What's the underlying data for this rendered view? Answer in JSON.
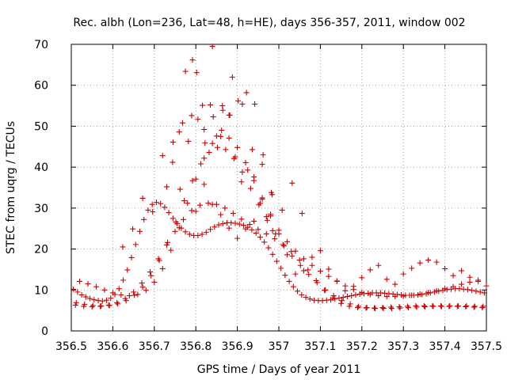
{
  "chart_data": {
    "type": "scatter",
    "title": "Rec. albh (Lon=236, Lat=48, h=HE), days 356-357, 2011, window 002",
    "xlabel": "GPS time / Days of year 2011",
    "ylabel": "STEC from uqrg / TECUs",
    "xlim": [
      356.5,
      357.5
    ],
    "ylim": [
      0,
      70
    ],
    "xticks": [
      "356.5",
      "356.6",
      "356.7",
      "356.8",
      "356.9",
      "357",
      "357.1",
      "357.2",
      "357.3",
      "357.4",
      "357.5"
    ],
    "yticks": [
      "0",
      "10",
      "20",
      "30",
      "40",
      "50",
      "60",
      "70"
    ],
    "grid": true,
    "marker": "plus",
    "color": "#cc0000",
    "x": [
      356.505,
      356.515,
      356.525,
      356.535,
      356.545,
      356.555,
      356.565,
      356.575,
      356.585,
      356.595,
      356.605,
      356.615,
      356.625,
      356.635,
      356.645,
      356.655,
      356.665,
      356.675,
      356.685,
      356.695,
      356.705,
      356.715,
      356.725,
      356.735,
      356.745,
      356.755,
      356.765,
      356.775,
      356.785,
      356.795,
      356.805,
      356.815,
      356.825,
      356.835,
      356.845,
      356.855,
      356.865,
      356.875,
      356.885,
      356.895,
      356.905,
      356.915,
      356.925,
      356.935,
      356.945,
      356.955,
      356.965,
      356.975,
      356.985,
      356.995,
      357.005,
      357.015,
      357.025,
      357.035,
      357.045,
      357.055,
      357.065,
      357.075,
      357.085,
      357.095,
      357.105,
      357.115,
      357.125,
      357.135,
      357.145,
      357.155,
      357.165,
      357.175,
      357.185,
      357.195,
      357.205,
      357.215,
      357.225,
      357.235,
      357.245,
      357.255,
      357.265,
      357.275,
      357.285,
      357.295,
      357.305,
      357.315,
      357.325,
      357.335,
      357.345,
      357.355,
      357.365,
      357.375,
      357.385,
      357.395,
      357.405,
      357.415,
      357.425,
      357.435,
      357.445,
      357.455,
      357.465,
      357.475,
      357.485,
      357.495,
      356.51,
      356.53,
      356.55,
      356.57,
      356.59,
      356.61,
      356.63,
      356.65,
      356.67,
      356.69,
      356.71,
      356.73,
      356.75,
      356.77,
      356.79,
      356.81,
      356.83,
      356.85,
      356.87,
      356.89,
      356.91,
      356.93,
      356.95,
      356.97,
      356.99,
      357.01,
      357.03,
      357.05,
      357.07,
      357.09,
      357.11,
      357.13,
      357.15,
      357.17,
      357.19,
      357.21,
      357.23,
      357.25,
      357.27,
      357.29,
      357.31,
      357.33,
      357.35,
      357.37,
      357.39,
      357.41,
      357.43,
      357.45,
      357.47,
      357.49,
      356.52,
      356.54,
      356.56,
      356.58,
      356.6,
      356.62,
      356.64,
      356.66,
      356.68,
      356.7,
      356.72,
      356.74,
      356.76,
      356.78,
      356.8,
      356.82,
      356.84,
      356.86,
      356.88,
      356.9,
      356.92,
      356.94,
      356.96,
      356.98,
      357.0,
      357.02,
      357.04,
      357.06,
      357.08,
      357.1,
      357.12,
      357.14,
      357.16,
      357.18,
      357.2,
      357.22,
      357.24,
      357.26,
      357.28,
      357.3,
      357.32,
      357.34,
      357.36,
      357.38,
      357.4,
      357.42,
      357.44,
      357.46,
      357.48,
      356.512,
      356.532,
      356.552,
      356.572,
      356.592,
      356.612,
      356.632,
      356.652,
      356.672,
      356.692,
      356.712,
      356.732,
      356.752,
      356.772,
      356.792,
      356.812,
      356.832,
      356.852,
      356.872,
      356.892,
      356.912,
      356.932,
      356.952,
      356.972,
      356.992,
      357.012,
      357.032,
      357.052,
      357.072,
      357.092,
      357.112,
      357.132,
      357.152,
      357.172,
      357.192,
      357.212,
      357.232,
      357.252,
      357.272,
      357.292,
      357.312,
      357.332,
      357.352,
      357.372,
      357.392,
      357.412,
      357.432,
      357.452,
      357.472,
      357.492,
      356.624,
      356.648,
      356.672,
      356.696,
      356.72,
      356.744,
      356.768,
      356.792,
      356.816,
      356.84,
      356.864,
      356.888,
      356.912,
      356.936,
      356.96,
      356.984,
      357.008,
      357.032,
      357.056,
      356.73,
      356.745,
      356.76,
      356.775,
      356.79,
      356.805,
      356.82,
      356.835,
      356.85,
      356.865,
      356.88,
      356.895,
      356.91,
      356.925,
      356.94,
      356.955,
      356.97,
      356.985,
      356.762,
      356.782,
      356.802,
      356.822,
      356.842,
      356.862,
      356.882,
      356.902,
      356.922,
      356.942,
      356.962,
      356.982,
      356.8,
      356.82,
      356.84,
      356.86,
      356.88,
      356.9,
      356.92,
      356.94,
      356.96,
      356.98,
      357.0,
      357.02,
      357.04,
      357.06,
      357.08,
      357.1,
      357.12,
      357.14,
      357.16,
      357.18,
      357.2,
      357.22,
      357.24,
      357.26,
      357.28,
      357.3,
      357.32,
      357.34,
      357.36,
      357.38,
      357.4,
      357.42,
      357.44,
      357.46,
      357.48,
      357.5
    ],
    "y": [
      10.2,
      9.5,
      8.8,
      8.3,
      7.9,
      7.6,
      7.4,
      7.3,
      7.5,
      8.0,
      8.9,
      10.3,
      12.4,
      14.9,
      17.9,
      21.1,
      24.3,
      27.2,
      29.5,
      30.9,
      31.4,
      31.1,
      30.2,
      28.9,
      27.5,
      26.2,
      25.1,
      24.2,
      23.6,
      23.3,
      23.3,
      23.6,
      24.1,
      24.8,
      25.4,
      25.9,
      26.2,
      26.4,
      26.4,
      26.3,
      26.1,
      25.8,
      25.3,
      24.7,
      23.9,
      22.9,
      21.7,
      20.3,
      18.7,
      17.0,
      15.3,
      13.6,
      12.1,
      10.8,
      9.7,
      8.8,
      8.2,
      7.8,
      7.5,
      7.4,
      7.4,
      7.5,
      7.6,
      7.8,
      8.0,
      8.2,
      8.4,
      8.6,
      8.8,
      9.0,
      9.1,
      9.2,
      9.3,
      9.3,
      9.3,
      9.2,
      9.1,
      9.0,
      8.9,
      8.8,
      8.7,
      8.7,
      8.7,
      8.8,
      8.9,
      9.1,
      9.3,
      9.5,
      9.7,
      9.9,
      10.1,
      10.2,
      10.3,
      10.3,
      10.2,
      10.1,
      9.9,
      9.7,
      9.5,
      9.3,
      6.3,
      6.0,
      5.9,
      6.0,
      6.3,
      6.9,
      7.9,
      9.5,
      11.7,
      14.4,
      17.6,
      21.0,
      24.3,
      27.2,
      29.4,
      30.7,
      31.2,
      30.9,
      30.0,
      28.7,
      27.3,
      26.0,
      24.8,
      23.7,
      22.5,
      21.1,
      19.4,
      17.3,
      14.9,
      12.3,
      9.9,
      8.0,
      6.7,
      6.0,
      5.7,
      5.6,
      5.6,
      5.7,
      5.8,
      5.9,
      6.0,
      6.1,
      6.1,
      6.1,
      6.1,
      6.0,
      6.0,
      5.9,
      5.8,
      5.7,
      12.1,
      11.5,
      10.8,
      10.0,
      9.3,
      8.8,
      8.6,
      8.9,
      9.9,
      11.9,
      15.2,
      19.7,
      25.2,
      31.2,
      37.1,
      42.2,
      45.8,
      47.5,
      47.1,
      44.8,
      41.1,
      36.7,
      32.2,
      28.1,
      24.6,
      21.8,
      19.5,
      17.6,
      16.0,
      14.6,
      13.3,
      12.1,
      11.0,
      10.1,
      9.4,
      8.9,
      8.6,
      8.4,
      8.4,
      8.5,
      8.7,
      9.0,
      9.4,
      9.8,
      10.3,
      10.8,
      11.4,
      11.9,
      12.4,
      6.9,
      6.5,
      6.2,
      6.1,
      6.2,
      6.6,
      7.4,
      8.7,
      10.7,
      13.5,
      17.2,
      21.6,
      26.6,
      31.8,
      36.7,
      40.8,
      43.6,
      44.8,
      44.3,
      42.1,
      38.8,
      34.8,
      30.8,
      27.0,
      23.7,
      20.8,
      18.3,
      16.0,
      13.8,
      11.8,
      10.0,
      8.6,
      7.4,
      6.6,
      6.0,
      5.7,
      5.5,
      5.5,
      5.5,
      5.6,
      5.7,
      5.8,
      5.9,
      6.0,
      6.0,
      6.1,
      6.1,
      6.1,
      6.0,
      6.0,
      20.5,
      24.9,
      32.4,
      29.1,
      42.8,
      41.2,
      50.8,
      66.2,
      55.1,
      69.5,
      55.0,
      62.0,
      55.4,
      44.3,
      40.7,
      33.3,
      29.5,
      36.1,
      28.7,
      35.2,
      46.1,
      48.6,
      63.4,
      52.6,
      51.7,
      49.2,
      55.2,
      47.6,
      53.9,
      52.7,
      42.5,
      36.4,
      39.3,
      37.6,
      31.2,
      27.9,
      24.5,
      34.6,
      46.3,
      63.1,
      45.9,
      52.3,
      49.0,
      52.7,
      56.2,
      58.2,
      55.4,
      43.0,
      33.8,
      29.2,
      35.8,
      30.9,
      28.4,
      25.1,
      22.6,
      24.9,
      26.8,
      32.5,
      28.5,
      23.7,
      18.6,
      13.9,
      14.7,
      18.0,
      19.6,
      15.1,
      12.2,
      9.8,
      10.9,
      13.0,
      14.9,
      16.0,
      12.6,
      11.4,
      13.9,
      15.3,
      16.6,
      17.3,
      16.8,
      15.2,
      13.5,
      14.7,
      13.1,
      12.1,
      11.0
    ]
  }
}
